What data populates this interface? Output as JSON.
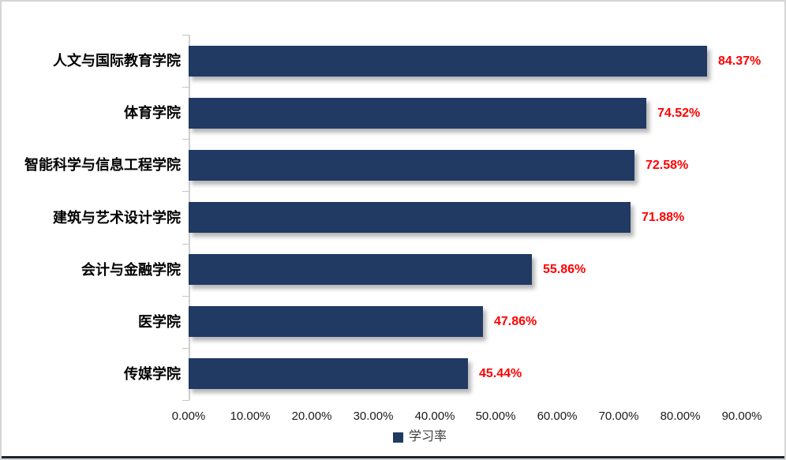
{
  "chart_data": {
    "type": "bar",
    "orientation": "horizontal",
    "title": "",
    "categories": [
      "人文与国际教育学院",
      "体育学院",
      "智能科学与信息工程学院",
      "建筑与艺术设计学院",
      "会计与金融学院",
      "医学院",
      "传媒学院"
    ],
    "series": [
      {
        "name": "学习率",
        "values": [
          84.37,
          74.52,
          72.58,
          71.88,
          55.86,
          47.86,
          45.44
        ],
        "value_labels": [
          "84.37%",
          "74.52%",
          "72.58%",
          "71.88%",
          "55.86%",
          "47.86%",
          "45.44%"
        ]
      }
    ],
    "xlabel": "",
    "ylabel": "",
    "xlim": [
      0,
      90
    ],
    "x_ticks": [
      "0.00%",
      "10.00%",
      "20.00%",
      "30.00%",
      "40.00%",
      "50.00%",
      "60.00%",
      "70.00%",
      "80.00%",
      "90.00%"
    ],
    "x_tick_values": [
      0,
      10,
      20,
      30,
      40,
      50,
      60,
      70,
      80,
      90
    ],
    "grid": false,
    "legend": {
      "label": "学习率",
      "position": "bottom-center"
    },
    "colors": {
      "bar": "#213A63",
      "value_label": "#FF0000",
      "axis_line": "#D0D0D0",
      "tick_mark": "#C6C6C6",
      "tick_label": "#1A1A1A",
      "category_label": "#000000",
      "legend_marker": "#213A63",
      "legend_text": "#404040",
      "bottom_rule": "#1E2533"
    }
  }
}
